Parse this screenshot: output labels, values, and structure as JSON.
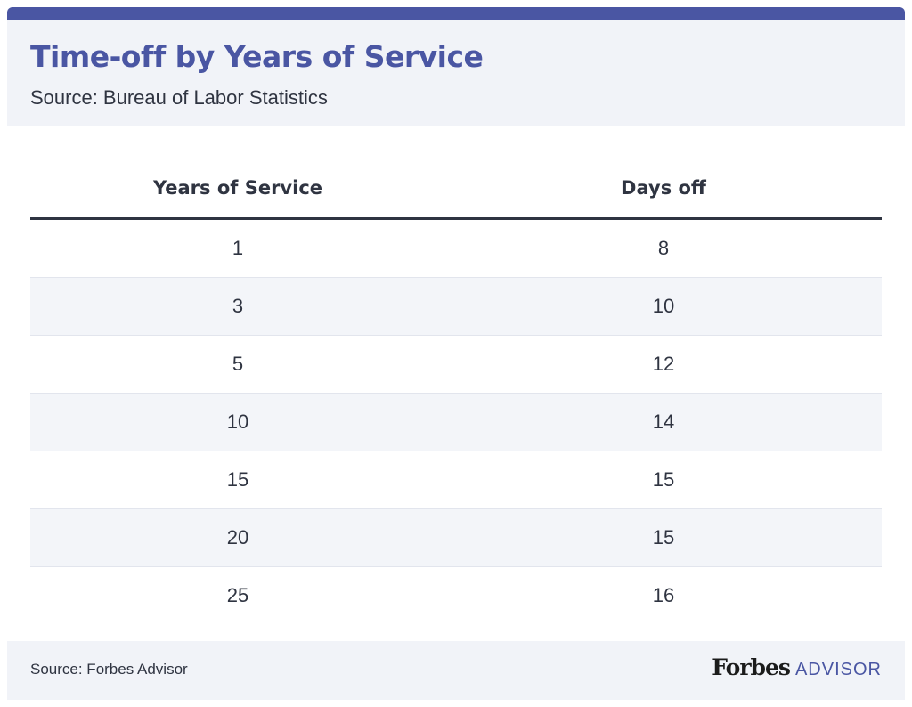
{
  "chart_data": {
    "type": "table",
    "title": "Time-off by Years of Service",
    "subtitle": "Source: Bureau of Labor Statistics",
    "columns": [
      "Years of Service",
      "Days off"
    ],
    "rows": [
      [
        "1",
        "8"
      ],
      [
        "3",
        "10"
      ],
      [
        "5",
        "12"
      ],
      [
        "10",
        "14"
      ],
      [
        "15",
        "15"
      ],
      [
        "20",
        "15"
      ],
      [
        "25",
        "16"
      ]
    ]
  },
  "footer": {
    "source": "Source: Forbes Advisor",
    "logo_text": "Forbes ADVISOR"
  },
  "colors": {
    "accent": "#4a56a3",
    "header_bg": "#f1f3f8",
    "text": "#2f3441",
    "row_alt_bg": "#f3f5f9"
  }
}
